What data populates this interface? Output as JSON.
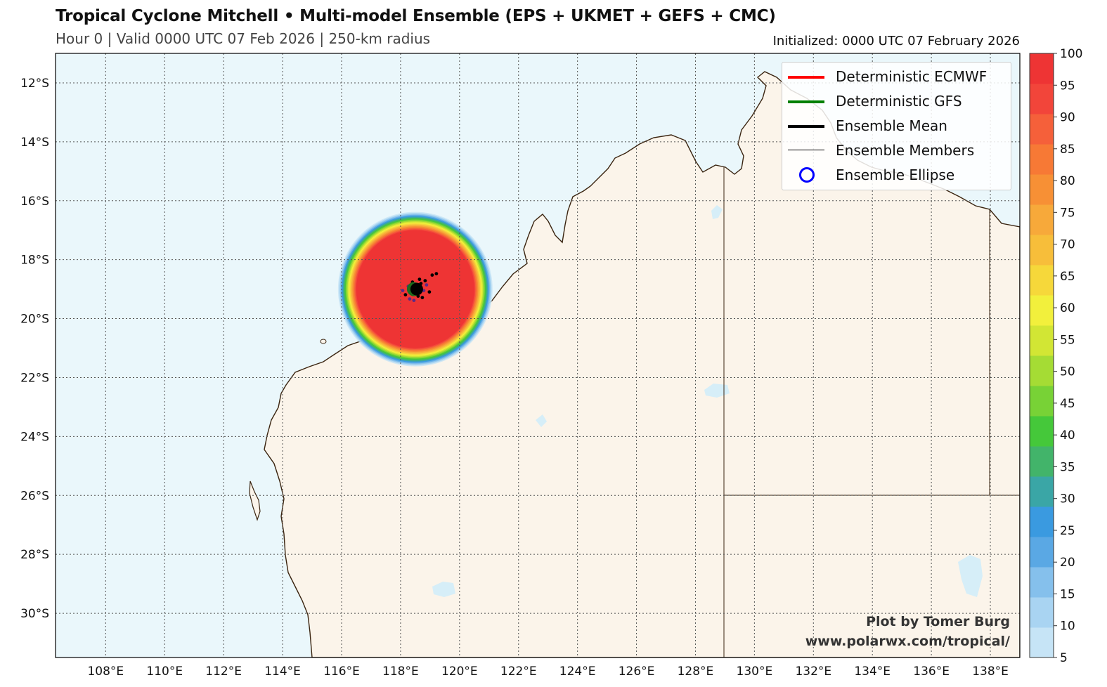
{
  "header": {
    "title": "Tropical Cyclone Mitchell • Multi-model Ensemble (EPS + UKMET + GEFS + CMC)",
    "subtitle": "Hour 0 | Valid 0000 UTC 07 Feb 2026 | 250-km radius",
    "initialized": "Initialized: 0000 UTC 07 February 2026"
  },
  "map": {
    "lon_range": [
      106.3,
      139.0
    ],
    "lat_range": [
      -31.5,
      -11.0
    ],
    "lon_ticks": [
      "108°E",
      "110°E",
      "112°E",
      "114°E",
      "116°E",
      "118°E",
      "120°E",
      "122°E",
      "124°E",
      "126°E",
      "128°E",
      "130°E",
      "132°E",
      "134°E",
      "136°E",
      "138°E"
    ],
    "lat_ticks": [
      "12°S",
      "14°S",
      "16°S",
      "18°S",
      "20°S",
      "22°S",
      "24°S",
      "26°S",
      "28°S",
      "30°S"
    ],
    "ocean_color": "#eaf7fb",
    "land_color": "#fbf4ea",
    "coast_color": "#3a2410"
  },
  "storm": {
    "center_lon": 118.5,
    "center_lat": -19.0,
    "probability_max": 100
  },
  "legend": {
    "items": [
      {
        "label": "Deterministic ECMWF",
        "color": "#ff0000",
        "kind": "line-thick"
      },
      {
        "label": "Deterministic GFS",
        "color": "#008000",
        "kind": "line-thick"
      },
      {
        "label": "Ensemble Mean",
        "color": "#000000",
        "kind": "line-thick"
      },
      {
        "label": "Ensemble Members",
        "color": "#000000",
        "kind": "line-thin"
      },
      {
        "label": "Ensemble Ellipse",
        "color": "#0000ff",
        "kind": "circle"
      }
    ]
  },
  "colorbar": {
    "ticks": [
      "5",
      "10",
      "15",
      "20",
      "25",
      "30",
      "35",
      "40",
      "45",
      "50",
      "55",
      "60",
      "65",
      "70",
      "75",
      "80",
      "85",
      "90",
      "95",
      "100"
    ],
    "colors": [
      "#c6e4f6",
      "#a9d4f2",
      "#85c0ec",
      "#5aa8e4",
      "#3a9ae0",
      "#3aa6a6",
      "#42b46a",
      "#45c83a",
      "#78d236",
      "#a5dc34",
      "#d2e634",
      "#f2f03c",
      "#f6d83a",
      "#f7be3a",
      "#f7a93a",
      "#f79035",
      "#f77935",
      "#f5603a",
      "#f2453a",
      "#ee3434"
    ]
  },
  "credit": {
    "line1": "Plot by Tomer Burg",
    "line2": "www.polarwx.com/tropical/"
  }
}
